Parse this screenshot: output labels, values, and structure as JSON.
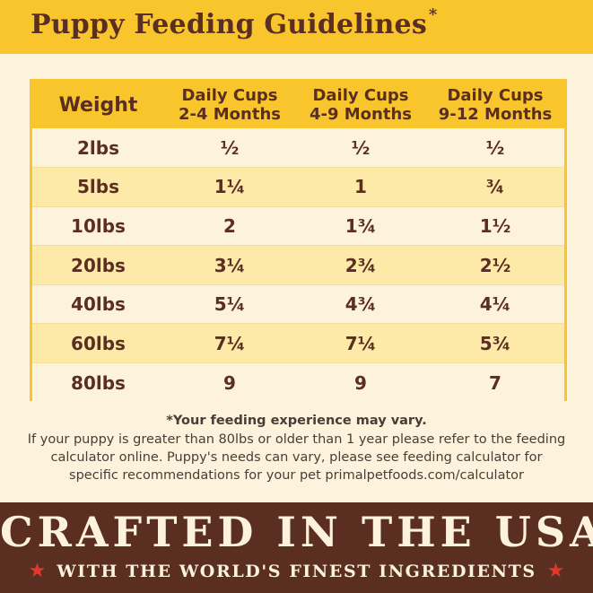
{
  "header": {
    "title": "Puppy Feeding Guidelines",
    "title_mark": "*",
    "background_color": "#f8c62c",
    "text_color": "#5a2e20"
  },
  "table": {
    "columns": [
      "Weight",
      "Daily Cups 2-4 Months",
      "Daily Cups 4-9 Months",
      "Daily Cups 9-12 Months"
    ],
    "column_lines": [
      [
        "Weight"
      ],
      [
        "Daily Cups",
        "2-4 Months"
      ],
      [
        "Daily Cups",
        "4-9 Months"
      ],
      [
        "Daily Cups",
        "9-12 Months"
      ]
    ],
    "rows": [
      [
        "2lbs",
        "½",
        "½",
        "½"
      ],
      [
        "5lbs",
        "1¼",
        "1",
        "¾"
      ],
      [
        "10lbs",
        "2",
        "1¾",
        "1½"
      ],
      [
        "20lbs",
        "3¼",
        "2¾",
        "2½"
      ],
      [
        "40lbs",
        "5¼",
        "4¾",
        "4¼"
      ],
      [
        "60lbs",
        "7¼",
        "7¼",
        "5¾"
      ],
      [
        "80lbs",
        "9",
        "9",
        "7"
      ]
    ],
    "row_alt_color": "#fde9a8"
  },
  "notes": {
    "title": "*Your feeding experience may vary.",
    "body": [
      "If your puppy is greater than 80lbs or older than 1 year please refer to the feeding",
      "calculator online. Puppy's needs can vary, please see feeding calculator for",
      "specific recommendations for your pet primalpetfoods.com/calculator"
    ]
  },
  "footer": {
    "title": "CRAFTED IN THE USA",
    "subtitle": "WITH THE WORLD'S FINEST INGREDIENTS",
    "star_glyph": "★",
    "background_color": "#5a2e20",
    "star_color": "#e0392b"
  }
}
